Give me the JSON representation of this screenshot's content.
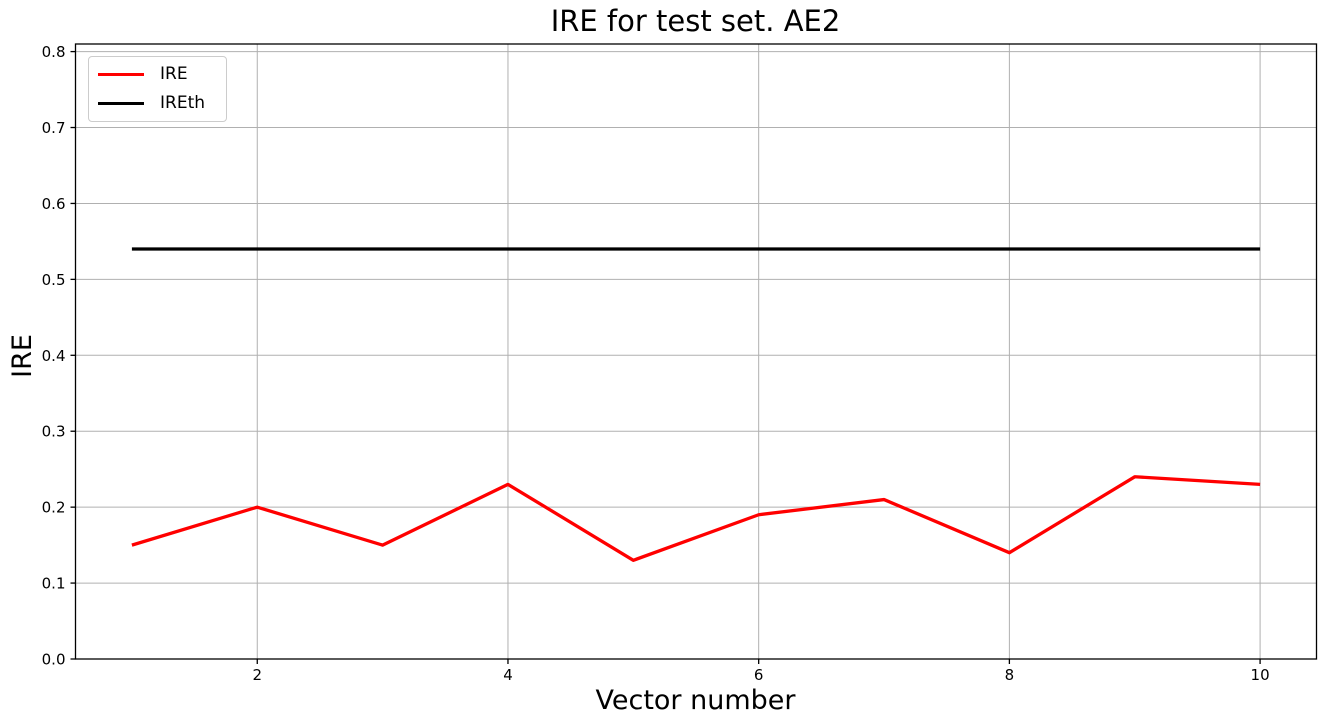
{
  "chart_data": {
    "type": "line",
    "title": "IRE for test set. AE2",
    "xlabel": "Vector number",
    "ylabel": "IRE",
    "x": [
      1,
      2,
      3,
      4,
      5,
      6,
      7,
      8,
      9,
      10
    ],
    "series": [
      {
        "name": "IRE",
        "color": "#ff0000",
        "values": [
          0.15,
          0.2,
          0.15,
          0.23,
          0.13,
          0.19,
          0.21,
          0.14,
          0.24,
          0.23
        ]
      },
      {
        "name": "IREth",
        "color": "#000000",
        "values": [
          0.54,
          0.54,
          0.54,
          0.54,
          0.54,
          0.54,
          0.54,
          0.54,
          0.54,
          0.54
        ]
      }
    ],
    "xlim": [
      0.55,
      10.45
    ],
    "ylim": [
      0.0,
      0.81
    ],
    "xticks": [
      2,
      4,
      6,
      8,
      10
    ],
    "xtick_labels": [
      "2",
      "4",
      "6",
      "8",
      "10"
    ],
    "yticks": [
      0.0,
      0.1,
      0.2,
      0.3,
      0.4,
      0.5,
      0.6,
      0.7,
      0.8
    ],
    "ytick_labels": [
      "0.0",
      "0.1",
      "0.2",
      "0.3",
      "0.4",
      "0.5",
      "0.6",
      "0.7",
      "0.8"
    ],
    "grid": true,
    "grid_color": "#b0b0b0",
    "axis_color": "#000000",
    "tick_label_color": "#000000",
    "legend_position": "upper left"
  }
}
